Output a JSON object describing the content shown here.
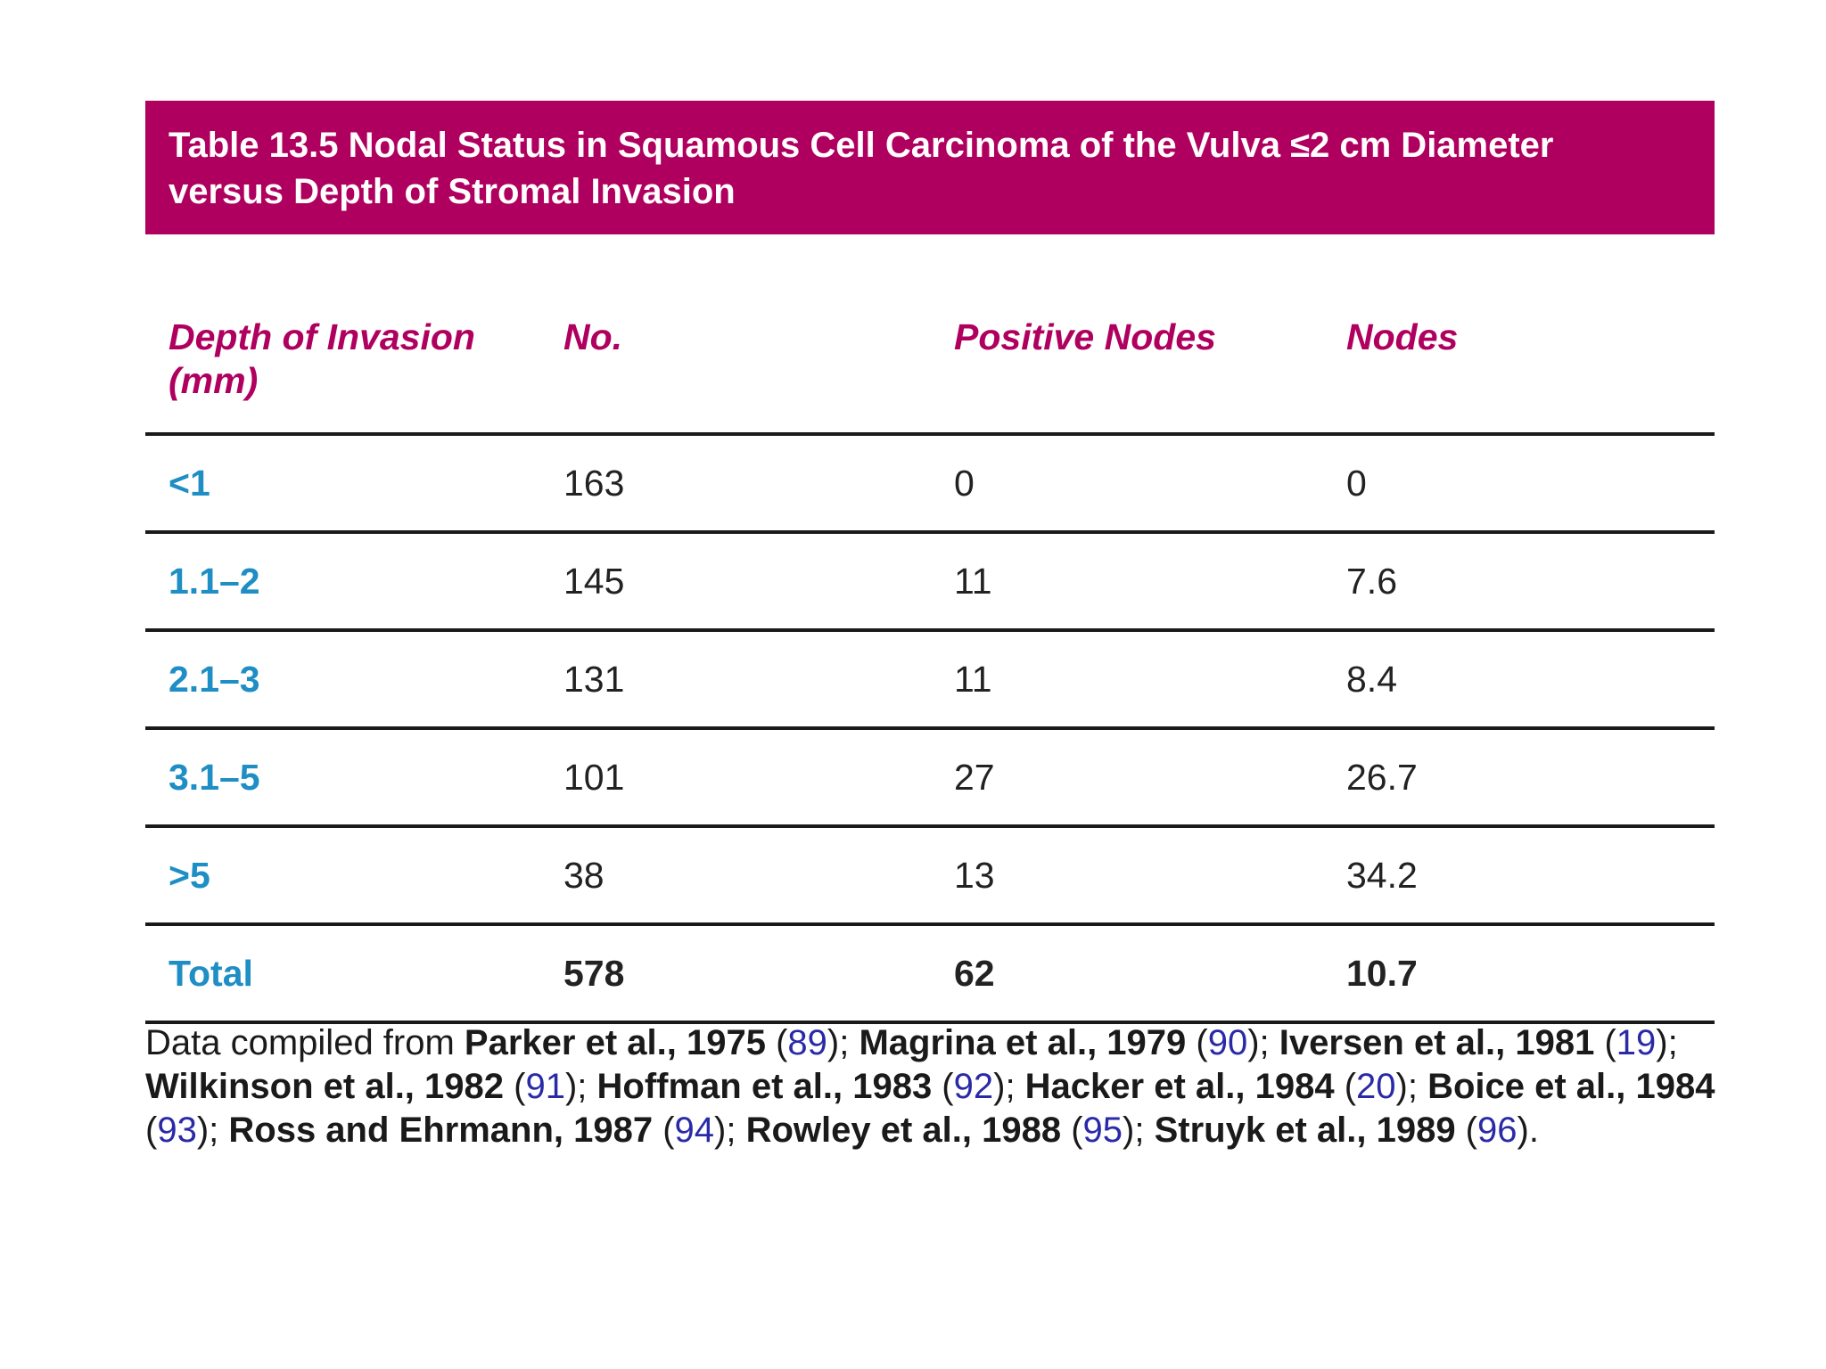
{
  "table": {
    "title_line1": "Table 13.5 Nodal Status in Squamous Cell Carcinoma of the Vulva ≤2 cm Diameter",
    "title_line2": "versus Depth of Stromal Invasion",
    "headers": {
      "depth_line1": "Depth of Invasion",
      "depth_line2": "(mm)",
      "no": "No.",
      "positive_nodes": "Positive Nodes",
      "nodes": "Nodes"
    },
    "rows": [
      {
        "depth": "<1",
        "no": "163",
        "positive_nodes": "0",
        "nodes": "0"
      },
      {
        "depth": "1.1–2",
        "no": "145",
        "positive_nodes": "11",
        "nodes": "7.6"
      },
      {
        "depth": "2.1–3",
        "no": "131",
        "positive_nodes": "11",
        "nodes": "8.4"
      },
      {
        "depth": "3.1–5",
        "no": "101",
        "positive_nodes": "27",
        "nodes": "26.7"
      },
      {
        "depth": ">5",
        "no": "38",
        "positive_nodes": "13",
        "nodes": "34.2"
      }
    ],
    "total": {
      "depth": "Total",
      "no": "578",
      "positive_nodes": "62",
      "nodes": "10.7"
    }
  },
  "footnote": {
    "intro": "Data compiled from ",
    "refs": [
      {
        "name": "Parker et al., 1975",
        "num": "89"
      },
      {
        "name": "Magrina et al., 1979",
        "num": "90"
      },
      {
        "name": "Iversen et al., 1981",
        "num": "19"
      },
      {
        "name": "Wilkinson et al., 1982",
        "num": "91"
      },
      {
        "name": "Hoffman et al., 1983",
        "num": "92"
      },
      {
        "name": "Hacker et al., 1984",
        "num": "20"
      },
      {
        "name": "Boice et al., 1984",
        "num": "93"
      },
      {
        "name": "Ross and Ehrmann, 1987",
        "num": "94"
      },
      {
        "name": "Rowley et al., 1988",
        "num": "95"
      },
      {
        "name": "Struyk et al., 1989",
        "num": "96"
      }
    ]
  },
  "colors": {
    "title_bg": "#b0005f",
    "header_text": "#b0005f",
    "depth_text": "#1e8ec4",
    "ref_number": "#2a2aa8"
  }
}
